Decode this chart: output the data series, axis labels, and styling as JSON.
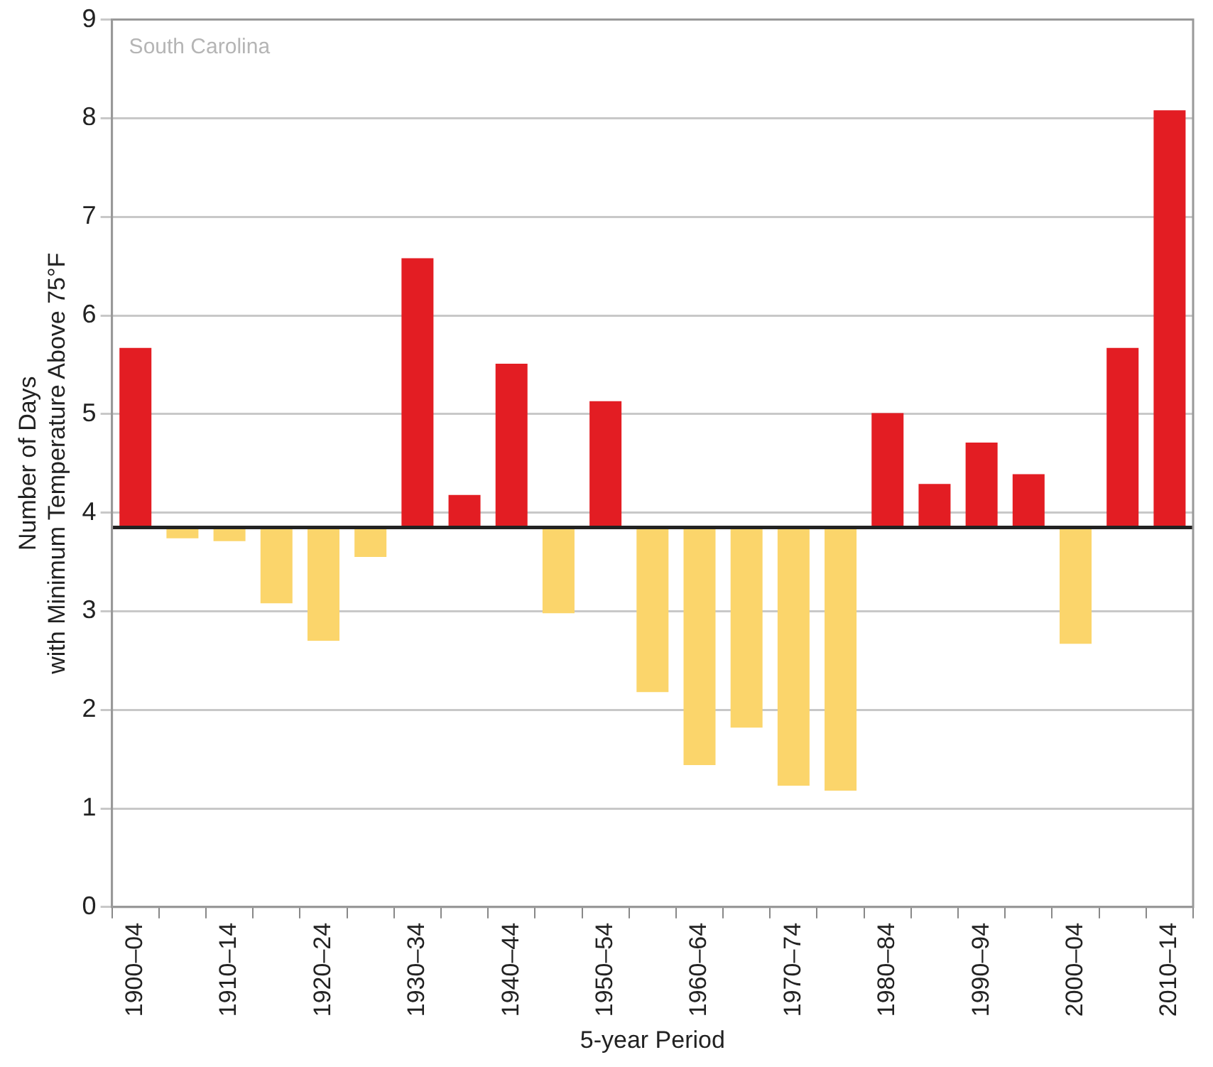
{
  "chart_data": {
    "type": "bar",
    "xlabel": "5-year Period",
    "ylabel": "Number of Days\nwith Minimum Temperature Above 75°F",
    "annotations": [
      "South Carolina"
    ],
    "categories": [
      "1900–04",
      null,
      "1910–14",
      null,
      "1920–24",
      null,
      "1930–34",
      null,
      "1940–44",
      null,
      "1950–54",
      null,
      "1960–64",
      null,
      "1970–74",
      null,
      "1980–84",
      null,
      "1990–94",
      null,
      "2000–04",
      null,
      "2010–14"
    ],
    "base": [
      3.85,
      3.85,
      3.85,
      3.85,
      3.85,
      3.85,
      3.85,
      3.85,
      3.85,
      3.85,
      3.85,
      3.85,
      3.85,
      3.85,
      3.85,
      3.85,
      3.85,
      3.85,
      3.85,
      3.85,
      3.85,
      3.85,
      3.85
    ],
    "values": [
      1.82,
      -0.11,
      -0.14,
      -0.77,
      -1.15,
      -0.3,
      2.73,
      0.33,
      1.66,
      -0.87,
      1.28,
      -1.67,
      -2.41,
      -2.03,
      -2.62,
      -2.67,
      1.16,
      0.44,
      0.86,
      0.54,
      -1.18,
      1.82,
      4.23
    ],
    "colors": [
      "#e31d23",
      "#fbd56b",
      "#fbd56b",
      "#fbd56b",
      "#fbd56b",
      "#fbd56b",
      "#e31d23",
      "#e31d23",
      "#e31d23",
      "#fbd56b",
      "#e31d23",
      "#fbd56b",
      "#fbd56b",
      "#fbd56b",
      "#fbd56b",
      "#fbd56b",
      "#e31d23",
      "#e31d23",
      "#e31d23",
      "#e31d23",
      "#fbd56b",
      "#e31d23",
      "#e31d23"
    ],
    "ref_lines": [
      {
        "axis": "y",
        "value": 3.85,
        "color": "#222222"
      }
    ],
    "ylim": [
      0,
      9
    ],
    "yticks": [
      0,
      1,
      2,
      3,
      4,
      5,
      6,
      7,
      8,
      9
    ],
    "grid": "y",
    "legend": false
  }
}
